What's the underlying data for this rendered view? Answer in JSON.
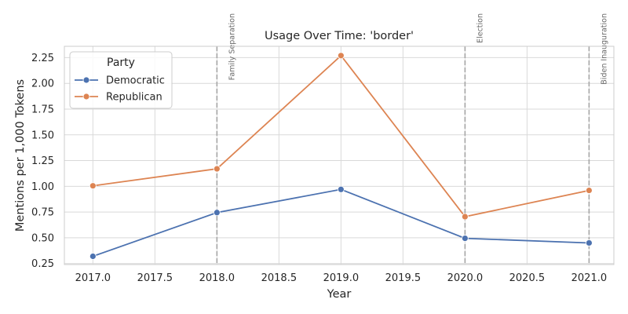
{
  "chart_data": {
    "type": "line",
    "title": "Usage Over Time: 'border'",
    "xlabel": "Year",
    "ylabel": "Mentions per 1,000 Tokens",
    "x": [
      2017,
      2018,
      2019,
      2020,
      2021
    ],
    "xlim": [
      2016.77,
      2021.2
    ],
    "ylim": [
      0.24,
      2.36
    ],
    "x_ticks": [
      2017.0,
      2017.5,
      2018.0,
      2018.5,
      2019.0,
      2019.5,
      2020.0,
      2020.5,
      2021.0
    ],
    "x_tick_labels": [
      "2017.0",
      "2017.5",
      "2018.0",
      "2018.5",
      "2019.0",
      "2019.5",
      "2020.0",
      "2020.5",
      "2021.0"
    ],
    "y_ticks": [
      0.25,
      0.5,
      0.75,
      1.0,
      1.25,
      1.5,
      1.75,
      2.0,
      2.25
    ],
    "y_tick_labels": [
      "0.25",
      "0.50",
      "0.75",
      "1.00",
      "1.25",
      "1.50",
      "1.75",
      "2.00",
      "2.25"
    ],
    "grid": true,
    "legend": {
      "title": "Party",
      "placement": "top-left"
    },
    "series": [
      {
        "name": "Democratic",
        "color": "#4c72b0",
        "values": [
          0.32,
          0.745,
          0.97,
          0.495,
          0.45
        ]
      },
      {
        "name": "Republican",
        "color": "#dd8452",
        "values": [
          1.005,
          1.17,
          2.27,
          0.705,
          0.96
        ]
      }
    ],
    "annotations": [
      {
        "x": 2018,
        "label": "Family Separation"
      },
      {
        "x": 2020,
        "label": "Election"
      },
      {
        "x": 2021,
        "label": "Biden Inauguration"
      }
    ]
  }
}
